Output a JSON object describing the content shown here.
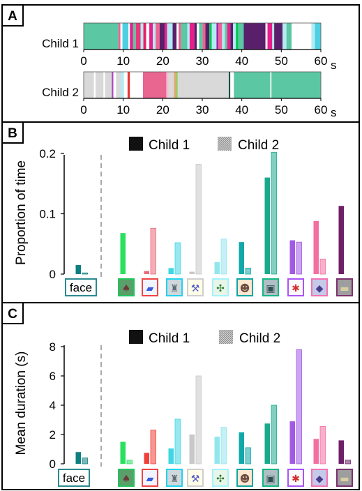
{
  "panels": {
    "a": {
      "label": "A",
      "ticks": [
        "0",
        "10",
        "20",
        "30",
        "40",
        "50",
        "60"
      ],
      "unit": "s",
      "rows": [
        {
          "name": "Child 1",
          "segments": [
            [
              0,
              8.8,
              "#5cc7a3"
            ],
            [
              8.8,
              9.3,
              "#f06292"
            ],
            [
              9.3,
              9.8,
              "#ffffff"
            ],
            [
              9.8,
              11.3,
              "#4dd0e1"
            ],
            [
              11.3,
              11.7,
              "#ffffff"
            ],
            [
              11.7,
              12.5,
              "#e91e8c"
            ],
            [
              12.5,
              13.2,
              "#5cc7a3"
            ],
            [
              13.2,
              14.4,
              "#e6397a"
            ],
            [
              14.4,
              15.1,
              "#b2ebf2"
            ],
            [
              15.1,
              15.8,
              "#e91e63"
            ],
            [
              15.8,
              16.6,
              "#ffffff"
            ],
            [
              16.6,
              17.5,
              "#e91e8c"
            ],
            [
              17.5,
              18.2,
              "#b2ebf2"
            ],
            [
              18.2,
              19.2,
              "#f06292"
            ],
            [
              19.2,
              20.5,
              "#5a1f6a"
            ],
            [
              20.5,
              21.1,
              "#e91e8c"
            ],
            [
              21.1,
              22.5,
              "#b2ebf2"
            ],
            [
              22.5,
              23.5,
              "#5a1f6a"
            ],
            [
              23.5,
              24.0,
              "#ffffff"
            ],
            [
              24.0,
              24.6,
              "#f06292"
            ],
            [
              24.6,
              26.2,
              "#5cc7a3"
            ],
            [
              26.2,
              26.8,
              "#b2ebf2"
            ],
            [
              26.8,
              28.0,
              "#e91e8c"
            ],
            [
              28.0,
              28.6,
              "#5a1f6a"
            ],
            [
              28.6,
              29.2,
              "#ffffff"
            ],
            [
              29.2,
              30.1,
              "#5cc7a3"
            ],
            [
              30.1,
              30.8,
              "#f06292"
            ],
            [
              30.8,
              31.8,
              "#5a1f6a"
            ],
            [
              31.8,
              32.4,
              "#00c853"
            ],
            [
              32.4,
              33.6,
              "#b2ebf2"
            ],
            [
              33.6,
              34.1,
              "#9c27b0"
            ],
            [
              34.1,
              35.0,
              "#f06292"
            ],
            [
              35.0,
              35.7,
              "#b2ebf2"
            ],
            [
              35.7,
              36.3,
              "#5cc7a3"
            ],
            [
              36.3,
              37.1,
              "#e91e8c"
            ],
            [
              37.1,
              37.8,
              "#5a1f6a"
            ],
            [
              37.8,
              38.5,
              "#b2ebf2"
            ],
            [
              38.5,
              39.1,
              "#00c853"
            ],
            [
              39.1,
              40.5,
              "#5cc7a3"
            ],
            [
              40.5,
              46.0,
              "#5a1f6a"
            ],
            [
              46.0,
              46.5,
              "#ffffff"
            ],
            [
              46.5,
              47.7,
              "#e91e8c"
            ],
            [
              47.7,
              48.2,
              "#b2ebf2"
            ],
            [
              48.2,
              50.3,
              "#5a1f6a"
            ],
            [
              50.3,
              51.3,
              "#b2ebf2"
            ],
            [
              51.3,
              52.6,
              "#5cc7a3"
            ],
            [
              52.6,
              57.6,
              "#ffffff"
            ],
            [
              57.6,
              58.5,
              "#b2ebf2"
            ],
            [
              58.5,
              60.0,
              "#4dd0e1"
            ]
          ]
        },
        {
          "name": "Child 2",
          "segments": [
            [
              0,
              2.6,
              "#d9d9d9"
            ],
            [
              2.6,
              3.0,
              "#ffffff"
            ],
            [
              3.0,
              5.0,
              "#d9d9d9"
            ],
            [
              5.0,
              5.4,
              "#ffffff"
            ],
            [
              5.4,
              7.1,
              "#d9d9d9"
            ],
            [
              7.1,
              7.5,
              "#ab47bc"
            ],
            [
              7.5,
              8.2,
              "#ffffff"
            ],
            [
              8.2,
              9.4,
              "#d9d9d9"
            ],
            [
              9.4,
              10.2,
              "#b2ebf2"
            ],
            [
              10.2,
              11.1,
              "#ffffff"
            ],
            [
              11.1,
              11.7,
              "#e53935"
            ],
            [
              11.7,
              15.0,
              "#ffffff"
            ],
            [
              15.0,
              20.9,
              "#e8668f"
            ],
            [
              20.9,
              21.5,
              "#f8bbd0"
            ],
            [
              21.5,
              22.8,
              "#d9d9d9"
            ],
            [
              22.8,
              23.2,
              "#f4a27e"
            ],
            [
              23.2,
              23.8,
              "#9ccc65"
            ],
            [
              23.8,
              36.7,
              "#d9d9d9"
            ],
            [
              36.7,
              37.1,
              "#1f4e4a"
            ],
            [
              37.1,
              38.0,
              "#ffffff"
            ],
            [
              38.0,
              47.2,
              "#5cc7a3"
            ],
            [
              47.2,
              47.5,
              "#ffffff"
            ],
            [
              47.5,
              60.0,
              "#5cc7a3"
            ]
          ]
        }
      ]
    },
    "b": {
      "label": "B"
    },
    "c": {
      "label": "C"
    }
  },
  "legend": {
    "child1": "Child 1",
    "child2": "Child 2"
  },
  "object_icons": [
    {
      "name": "face-label",
      "text": "face",
      "border": "#2a8a8f"
    },
    {
      "name": "icon-creature",
      "border": "#22c55e",
      "glyph": "♠",
      "fg": "#6b3a3a",
      "bg": "#5a9e6a"
    },
    {
      "name": "icon-blue-car",
      "border": "#ef4444",
      "glyph": "▰",
      "fg": "#3b5bdb",
      "bg": "#f0f4ff"
    },
    {
      "name": "icon-silver-robot",
      "border": "#22d3ee",
      "glyph": "♜",
      "fg": "#5f6b73",
      "bg": "#cfd8dc"
    },
    {
      "name": "icon-hammer",
      "border": "#cfcfcf",
      "glyph": "⚒",
      "fg": "#4a55c8",
      "bg": "#fffde7"
    },
    {
      "name": "icon-green-bug",
      "border": "#a5f3fc",
      "glyph": "✣",
      "fg": "#2e7d32",
      "bg": "#e8f5e9"
    },
    {
      "name": "icon-doll",
      "border": "#0ea5a5",
      "glyph": "☻",
      "fg": "#6d4c41",
      "bg": "#fde7d0"
    },
    {
      "name": "icon-cube-toy",
      "border": "#10b981",
      "glyph": "▣",
      "fg": "#2f4f4f",
      "bg": "#b0bec5"
    },
    {
      "name": "icon-red-beetle",
      "border": "#a855f7",
      "glyph": "✱",
      "fg": "#d32f2f",
      "bg": "#fafafa"
    },
    {
      "name": "icon-purple-box",
      "border": "#f472b6",
      "glyph": "◆",
      "fg": "#4b3b8f",
      "bg": "#c5cae9"
    },
    {
      "name": "icon-flat-toy",
      "border": "#7e2f6e",
      "glyph": "▬",
      "fg": "#d7cfa3",
      "bg": "#9e9e9e"
    }
  ],
  "chart_data": [
    {
      "type": "timeline",
      "panel": "A",
      "xlim": [
        0,
        60
      ],
      "unit": "s",
      "rows": [
        "Child 1",
        "Child 2"
      ]
    },
    {
      "type": "bar",
      "panel": "B",
      "ylabel": "Proportion of time",
      "yticks": [
        "0",
        "0.1",
        "0.2"
      ],
      "ylim": [
        0,
        0.215
      ],
      "colors": [
        "#0e7f80",
        "#29e05f",
        "#e8697a",
        "#40d6e4",
        "#c8c8c8",
        "#92e6ee",
        "#10a8a8",
        "#1aa98c",
        "#a259e6",
        "#f36fa0",
        "#6e1f68"
      ],
      "categories": [
        "face",
        "creature",
        "blue car",
        "silver robot",
        "hammer",
        "green bug",
        "doll",
        "cube toy",
        "red beetle",
        "purple box",
        "flat toy"
      ],
      "series": [
        {
          "name": "Child 1",
          "values": [
            0.015,
            0.068,
            0.005,
            0.01,
            0.004,
            0.02,
            0.053,
            0.16,
            0.056,
            0.088,
            0.113
          ]
        },
        {
          "name": "Child 2",
          "values": [
            0.002,
            0.0,
            0.076,
            0.052,
            0.182,
            0.058,
            0.01,
            0.202,
            0.053,
            0.025,
            0.0
          ]
        }
      ]
    },
    {
      "type": "bar",
      "panel": "C",
      "ylabel": "Mean duration (s)",
      "yticks": [
        "0",
        "2",
        "4",
        "6",
        "8"
      ],
      "ylim": [
        0,
        8
      ],
      "colors": [
        "#0e7f80",
        "#29e05f",
        "#f0403a",
        "#40d6e4",
        "#c8c8c8",
        "#92e6ee",
        "#10a8a8",
        "#1aa98c",
        "#a259e6",
        "#f36fa0",
        "#6e1f68"
      ],
      "categories": [
        "face",
        "creature",
        "blue car",
        "silver robot",
        "hammer",
        "green bug",
        "doll",
        "cube toy",
        "red beetle",
        "purple box",
        "flat toy"
      ],
      "series": [
        {
          "name": "Child 1",
          "values": [
            0.8,
            1.5,
            0.75,
            1.05,
            2.0,
            1.85,
            2.15,
            2.75,
            2.9,
            1.7,
            1.6
          ]
        },
        {
          "name": "Child 2",
          "values": [
            0.4,
            0.25,
            2.3,
            3.05,
            6.0,
            2.5,
            1.1,
            4.0,
            7.8,
            2.55,
            0.25
          ]
        }
      ]
    }
  ]
}
